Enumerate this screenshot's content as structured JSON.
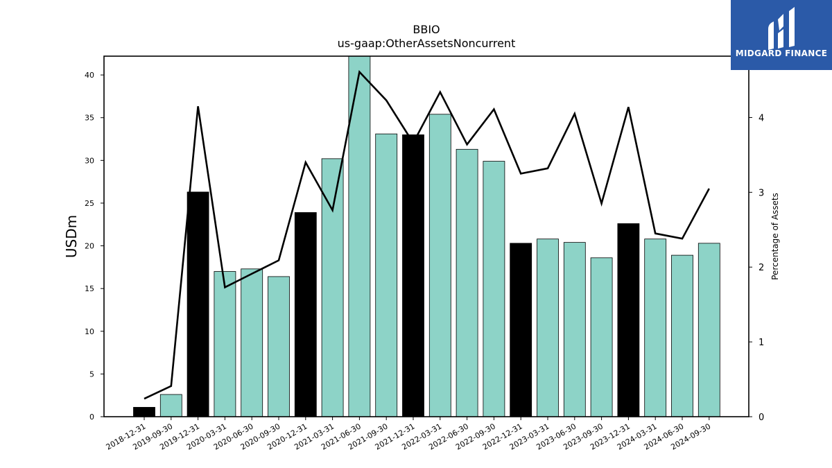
{
  "chart_data": {
    "type": "bar",
    "title": "BBIO",
    "subtitle": "us-gaap:OtherAssetsNoncurrent",
    "ylabel": "USDm",
    "y2label": "Percentage of Assets",
    "ylim": [
      0,
      42.2
    ],
    "y2lim": [
      0,
      4.82
    ],
    "yticks": [
      0,
      5,
      10,
      15,
      20,
      25,
      30,
      35,
      40
    ],
    "y2ticks": [
      0,
      1,
      2,
      3,
      4
    ],
    "categories": [
      "2018-12-31",
      "2019-09-30",
      "2019-12-31",
      "2020-03-31",
      "2020-06-30",
      "2020-09-30",
      "2020-12-31",
      "2021-03-31",
      "2021-06-30",
      "2021-09-30",
      "2021-12-31",
      "2022-03-31",
      "2022-06-30",
      "2022-09-30",
      "2022-12-31",
      "2023-03-31",
      "2023-06-30",
      "2023-09-30",
      "2023-12-31",
      "2024-03-31",
      "2024-06-30",
      "2024-09-30"
    ],
    "series": [
      {
        "kind": "bar",
        "values": [
          1.1,
          2.6,
          26.3,
          17.0,
          17.3,
          16.4,
          23.9,
          30.2,
          43.0,
          33.1,
          33.0,
          35.4,
          31.3,
          29.9,
          20.3,
          20.8,
          20.4,
          18.6,
          22.6,
          20.8,
          18.9,
          20.3
        ],
        "highlight": [
          true,
          false,
          true,
          false,
          false,
          false,
          true,
          false,
          false,
          false,
          true,
          false,
          false,
          false,
          true,
          false,
          false,
          false,
          true,
          false,
          false,
          false
        ],
        "color": "#8dd3c7",
        "highlight_color": "#000000"
      },
      {
        "kind": "line",
        "axis": "right",
        "values": [
          0.24,
          0.41,
          4.15,
          1.73,
          1.91,
          2.09,
          3.4,
          2.76,
          4.61,
          4.23,
          3.66,
          4.34,
          3.64,
          4.11,
          3.25,
          3.32,
          4.05,
          2.85,
          4.14,
          2.45,
          2.38,
          3.05
        ],
        "color": "#000000"
      }
    ]
  },
  "logo": {
    "text": "MIDGARD FINANCE",
    "bg_color": "#2b5aa8"
  }
}
